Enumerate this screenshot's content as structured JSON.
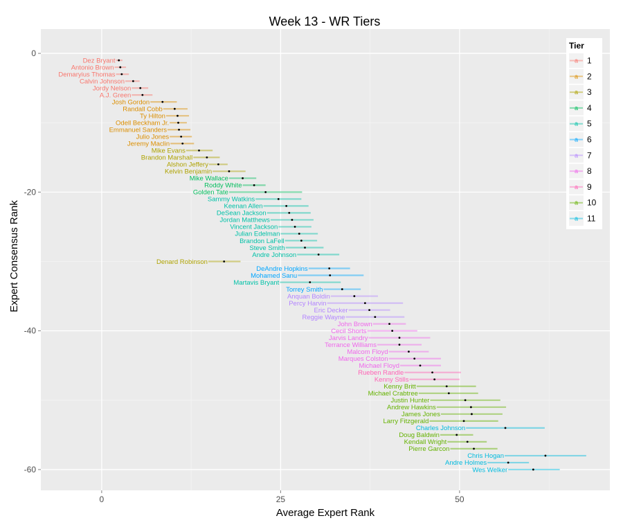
{
  "chart_data": {
    "type": "scatter",
    "title": "Week 13 - WR Tiers",
    "xlabel": "Average Expert Rank",
    "ylabel": "Expert Consensus Rank",
    "xlim": [
      -8.5,
      71
    ],
    "ylim": [
      -63,
      3.5
    ],
    "x_ticks": [
      0,
      25,
      50
    ],
    "y_ticks": [
      0,
      -20,
      -40,
      -60
    ],
    "x_tick_labels": [
      "0",
      "25",
      "50"
    ],
    "y_tick_labels": [
      "0",
      "-20",
      "-40",
      "-60"
    ],
    "grid": true,
    "legend": {
      "title": "Tier",
      "position": "top-right",
      "key_glyph": "a",
      "entries": [
        "1",
        "2",
        "3",
        "4",
        "5",
        "6",
        "7",
        "8",
        "9",
        "10",
        "11"
      ]
    },
    "tier_colors": {
      "1": "#F8766D",
      "2": "#DB8E00",
      "3": "#AEA200",
      "4": "#00BD5C",
      "5": "#00C1A7",
      "6": "#00A6FF",
      "7": "#B385FF",
      "8": "#EF67EB",
      "9": "#FF63B6",
      "10": "#64B200",
      "11": "#00BADE"
    },
    "points": [
      {
        "name": "Dez Bryant",
        "tier": 1,
        "x": 2.4,
        "y": -1,
        "xmin": 2.0,
        "xmax": 2.9
      },
      {
        "name": "Antonio Brown",
        "tier": 1,
        "x": 2.6,
        "y": -2,
        "xmin": 1.8,
        "xmax": 3.4
      },
      {
        "name": "Demaryius Thomas",
        "tier": 1,
        "x": 2.8,
        "y": -3,
        "xmin": 2.0,
        "xmax": 3.8
      },
      {
        "name": "Calvin Johnson",
        "tier": 1,
        "x": 4.4,
        "y": -4,
        "xmin": 3.3,
        "xmax": 5.3
      },
      {
        "name": "Jordy Nelson",
        "tier": 1,
        "x": 5.4,
        "y": -5,
        "xmin": 4.2,
        "xmax": 6.5
      },
      {
        "name": "A.J. Green",
        "tier": 1,
        "x": 5.7,
        "y": -6,
        "xmin": 4.2,
        "xmax": 7.1
      },
      {
        "name": "Josh Gordon",
        "tier": 2,
        "x": 8.5,
        "y": -7,
        "xmin": 6.8,
        "xmax": 10.5
      },
      {
        "name": "Randall Cobb",
        "tier": 2,
        "x": 10.2,
        "y": -8,
        "xmin": 8.6,
        "xmax": 12.0
      },
      {
        "name": "Ty Hilton",
        "tier": 2,
        "x": 10.6,
        "y": -9,
        "xmin": 9.0,
        "xmax": 12.2
      },
      {
        "name": "Odell Beckham Jr.",
        "tier": 2,
        "x": 10.7,
        "y": -10,
        "xmin": 9.5,
        "xmax": 11.9
      },
      {
        "name": "Emmanuel Sanders",
        "tier": 2,
        "x": 10.8,
        "y": -11,
        "xmin": 9.2,
        "xmax": 12.4
      },
      {
        "name": "Julio Jones",
        "tier": 2,
        "x": 11.1,
        "y": -12,
        "xmin": 9.5,
        "xmax": 12.6
      },
      {
        "name": "Jeremy Maclin",
        "tier": 2,
        "x": 11.3,
        "y": -13,
        "xmin": 9.6,
        "xmax": 12.9
      },
      {
        "name": "Mike Evans",
        "tier": 3,
        "x": 13.6,
        "y": -14,
        "xmin": 11.8,
        "xmax": 15.5
      },
      {
        "name": "Brandon Marshall",
        "tier": 3,
        "x": 14.7,
        "y": -15,
        "xmin": 12.8,
        "xmax": 16.5
      },
      {
        "name": "Alshon Jeffery",
        "tier": 3,
        "x": 16.3,
        "y": -16,
        "xmin": 15.0,
        "xmax": 17.6
      },
      {
        "name": "Kelvin Benjamin",
        "tier": 3,
        "x": 17.8,
        "y": -17,
        "xmin": 15.5,
        "xmax": 20.1
      },
      {
        "name": "Mike Wallace",
        "tier": 4,
        "x": 19.7,
        "y": -18,
        "xmin": 17.8,
        "xmax": 21.6
      },
      {
        "name": "Roddy White",
        "tier": 4,
        "x": 21.3,
        "y": -19,
        "xmin": 19.7,
        "xmax": 22.9
      },
      {
        "name": "Golden Tate",
        "tier": 4,
        "x": 22.9,
        "y": -20,
        "xmin": 17.8,
        "xmax": 28.0
      },
      {
        "name": "Sammy Watkins",
        "tier": 5,
        "x": 24.7,
        "y": -21,
        "xmin": 21.5,
        "xmax": 27.9
      },
      {
        "name": "Keenan Allen",
        "tier": 5,
        "x": 25.8,
        "y": -22,
        "xmin": 22.6,
        "xmax": 28.9
      },
      {
        "name": "DeSean Jackson",
        "tier": 5,
        "x": 26.2,
        "y": -23,
        "xmin": 23.1,
        "xmax": 29.2
      },
      {
        "name": "Jordan Matthews",
        "tier": 5,
        "x": 26.6,
        "y": -24,
        "xmin": 23.6,
        "xmax": 29.6
      },
      {
        "name": "Vincent Jackson",
        "tier": 5,
        "x": 27.0,
        "y": -25,
        "xmin": 24.7,
        "xmax": 29.3
      },
      {
        "name": "Julian Edelman",
        "tier": 5,
        "x": 27.6,
        "y": -26,
        "xmin": 25.0,
        "xmax": 30.2
      },
      {
        "name": "Brandon LaFell",
        "tier": 5,
        "x": 27.9,
        "y": -27,
        "xmin": 25.6,
        "xmax": 30.1
      },
      {
        "name": "Steve Smith",
        "tier": 5,
        "x": 28.4,
        "y": -28,
        "xmin": 25.7,
        "xmax": 31.0
      },
      {
        "name": "Andre Johnson",
        "tier": 5,
        "x": 30.3,
        "y": -29,
        "xmin": 27.3,
        "xmax": 33.2
      },
      {
        "name": "Denard Robinson",
        "tier": 3,
        "x": 17.1,
        "y": -30,
        "xmin": 14.9,
        "xmax": 19.4
      },
      {
        "name": "DeAndre Hopkins",
        "tier": 6,
        "x": 31.8,
        "y": -31,
        "xmin": 28.9,
        "xmax": 34.7
      },
      {
        "name": "Mohamed Sanu",
        "tier": 6,
        "x": 31.9,
        "y": -32,
        "xmin": 27.4,
        "xmax": 36.6
      },
      {
        "name": "Martavis Bryant",
        "tier": 5,
        "x": 29.1,
        "y": -33,
        "xmin": 24.9,
        "xmax": 33.4
      },
      {
        "name": "Torrey Smith",
        "tier": 6,
        "x": 33.6,
        "y": -34,
        "xmin": 31.0,
        "xmax": 36.2
      },
      {
        "name": "Anquan Boldin",
        "tier": 7,
        "x": 35.3,
        "y": -35,
        "xmin": 32.0,
        "xmax": 38.6
      },
      {
        "name": "Percy Harvin",
        "tier": 7,
        "x": 36.8,
        "y": -36,
        "xmin": 31.5,
        "xmax": 42.1
      },
      {
        "name": "Eric Decker",
        "tier": 7,
        "x": 37.4,
        "y": -37,
        "xmin": 34.5,
        "xmax": 40.3
      },
      {
        "name": "Reggie Wayne",
        "tier": 7,
        "x": 38.2,
        "y": -38,
        "xmin": 34.1,
        "xmax": 42.3
      },
      {
        "name": "John Brown",
        "tier": 8,
        "x": 40.2,
        "y": -39,
        "xmin": 37.9,
        "xmax": 42.5
      },
      {
        "name": "Cecil Shorts",
        "tier": 8,
        "x": 40.6,
        "y": -40,
        "xmin": 37.1,
        "xmax": 44.1
      },
      {
        "name": "Jarvis Landry",
        "tier": 8,
        "x": 41.6,
        "y": -41,
        "xmin": 37.3,
        "xmax": 45.9
      },
      {
        "name": "Terrance Williams",
        "tier": 8,
        "x": 41.6,
        "y": -42,
        "xmin": 38.5,
        "xmax": 44.7
      },
      {
        "name": "Malcom Floyd",
        "tier": 8,
        "x": 42.9,
        "y": -43,
        "xmin": 40.1,
        "xmax": 45.7
      },
      {
        "name": "Marques Colston",
        "tier": 8,
        "x": 43.7,
        "y": -44,
        "xmin": 40.1,
        "xmax": 47.4
      },
      {
        "name": "Michael Floyd",
        "tier": 8,
        "x": 44.5,
        "y": -45,
        "xmin": 41.7,
        "xmax": 47.4
      },
      {
        "name": "Rueben Randle",
        "tier": 9,
        "x": 46.2,
        "y": -46,
        "xmin": 42.3,
        "xmax": 50.2
      },
      {
        "name": "Kenny Stills",
        "tier": 9,
        "x": 46.5,
        "y": -47,
        "xmin": 43.0,
        "xmax": 50.0
      },
      {
        "name": "Kenny Britt",
        "tier": 10,
        "x": 48.2,
        "y": -48,
        "xmin": 44.0,
        "xmax": 52.3
      },
      {
        "name": "Michael Crabtree",
        "tier": 10,
        "x": 48.5,
        "y": -49,
        "xmin": 44.3,
        "xmax": 52.6
      },
      {
        "name": "Justin Hunter",
        "tier": 10,
        "x": 50.8,
        "y": -50,
        "xmin": 45.9,
        "xmax": 55.7
      },
      {
        "name": "Andrew Hawkins",
        "tier": 10,
        "x": 51.6,
        "y": -51,
        "xmin": 46.8,
        "xmax": 56.5
      },
      {
        "name": "James Jones",
        "tier": 10,
        "x": 51.7,
        "y": -52,
        "xmin": 47.4,
        "xmax": 56.0
      },
      {
        "name": "Larry Fitzgerald",
        "tier": 10,
        "x": 50.6,
        "y": -53,
        "xmin": 45.8,
        "xmax": 55.4
      },
      {
        "name": "Charles Johnson",
        "tier": 11,
        "x": 56.4,
        "y": -54,
        "xmin": 50.9,
        "xmax": 61.9
      },
      {
        "name": "Doug Baldwin",
        "tier": 10,
        "x": 49.6,
        "y": -55,
        "xmin": 47.3,
        "xmax": 51.9
      },
      {
        "name": "Kendall Wright",
        "tier": 10,
        "x": 51.1,
        "y": -56,
        "xmin": 48.3,
        "xmax": 53.8
      },
      {
        "name": "Pierre Garcon",
        "tier": 10,
        "x": 52.0,
        "y": -57,
        "xmin": 48.7,
        "xmax": 55.3
      },
      {
        "name": "Chris Hogan",
        "tier": 11,
        "x": 62.0,
        "y": -58,
        "xmin": 56.3,
        "xmax": 67.7
      },
      {
        "name": "Andre Holmes",
        "tier": 11,
        "x": 56.8,
        "y": -59,
        "xmin": 53.9,
        "xmax": 59.7
      },
      {
        "name": "Wes Welker",
        "tier": 11,
        "x": 60.3,
        "y": -60,
        "xmin": 56.8,
        "xmax": 64.0
      }
    ]
  }
}
